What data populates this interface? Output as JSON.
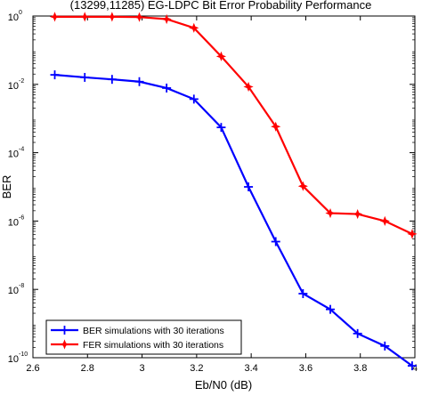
{
  "chart_data": {
    "type": "line",
    "title": "(13299,11285) EG-LDPC Bit Error Probability Performance",
    "xlabel": "Eb/N0 (dB)",
    "ylabel": "BER",
    "xlim": [
      2.6,
      4.0
    ],
    "ylim": [
      1e-10,
      1
    ],
    "y_scale": "log",
    "grid": false,
    "legend_position": "bottom-left",
    "x_ticks": [
      "2.6",
      "2.8",
      "3",
      "3.2",
      "3.4",
      "3.6",
      "3.8",
      "4"
    ],
    "y_ticks": [
      {
        "base": "10",
        "exp": "0"
      },
      {
        "base": "10",
        "exp": "-2"
      },
      {
        "base": "10",
        "exp": "-4"
      },
      {
        "base": "10",
        "exp": "-6"
      },
      {
        "base": "10",
        "exp": "-8"
      },
      {
        "base": "10",
        "exp": "-10"
      }
    ],
    "series": [
      {
        "name": "BER simulations with 30 iterations",
        "color": "#0000ff",
        "marker": "plus",
        "x": [
          2.68,
          2.79,
          2.89,
          2.99,
          3.09,
          3.19,
          3.29,
          3.39,
          3.49,
          3.59,
          3.69,
          3.79,
          3.89,
          3.99
        ],
        "y": [
          0.019,
          0.016,
          0.014,
          0.012,
          0.0078,
          0.0037,
          0.00055,
          1e-05,
          2.5e-07,
          7.5e-09,
          2.6e-09,
          5.1e-10,
          2.2e-10,
          5.8e-11
        ]
      },
      {
        "name": "FER simulations with 30 iterations",
        "color": "#ff0000",
        "marker": "star",
        "x": [
          2.68,
          2.79,
          2.89,
          2.99,
          3.09,
          3.19,
          3.29,
          3.39,
          3.49,
          3.59,
          3.69,
          3.79,
          3.89,
          3.99
        ],
        "y": [
          0.95,
          0.95,
          0.95,
          0.93,
          0.81,
          0.45,
          0.066,
          0.0085,
          0.00058,
          1.05e-05,
          1.7e-06,
          1.6e-06,
          1e-06,
          4.2e-07
        ]
      }
    ]
  }
}
